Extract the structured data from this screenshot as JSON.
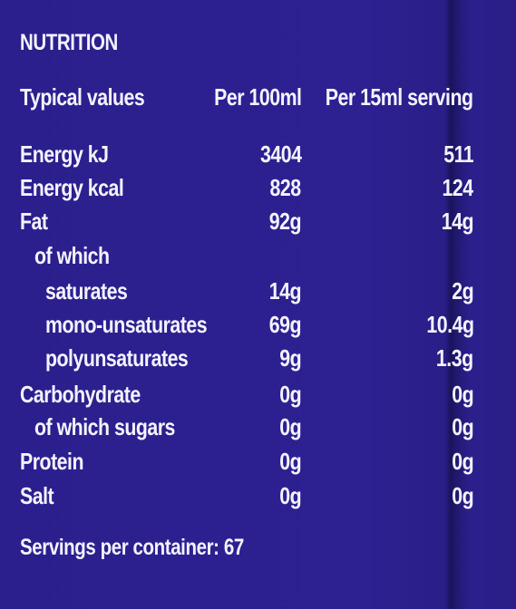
{
  "label": {
    "title": "NUTRITION",
    "header": {
      "typical": "Typical values",
      "per100": "Per 100ml",
      "serving": "Per 15ml serving"
    },
    "rows": [
      {
        "name": "Energy kJ",
        "per100": "3404",
        "serving": "511"
      },
      {
        "name": "Energy kcal",
        "per100": "828",
        "serving": "124"
      },
      {
        "name": "Fat",
        "per100": "92g",
        "serving": "14g"
      },
      {
        "name": "of which",
        "per100": "",
        "serving": ""
      },
      {
        "name": "saturates",
        "per100": "14g",
        "serving": "2g"
      },
      {
        "name": "mono-unsaturates",
        "per100": "69g",
        "serving": "10.4g"
      },
      {
        "name": "polyunsaturates",
        "per100": "9g",
        "serving": "1.3g"
      },
      {
        "name": "Carbohydrate",
        "per100": "0g",
        "serving": "0g"
      },
      {
        "name": "of which sugars",
        "per100": "0g",
        "serving": "0g"
      },
      {
        "name": "Protein",
        "per100": "0g",
        "serving": "0g"
      },
      {
        "name": "Salt",
        "per100": "0g",
        "serving": "0g"
      }
    ],
    "servings": "Servings per container: 67"
  },
  "colors": {
    "background": "#2b1f8d",
    "text": "#f4f3ff"
  }
}
